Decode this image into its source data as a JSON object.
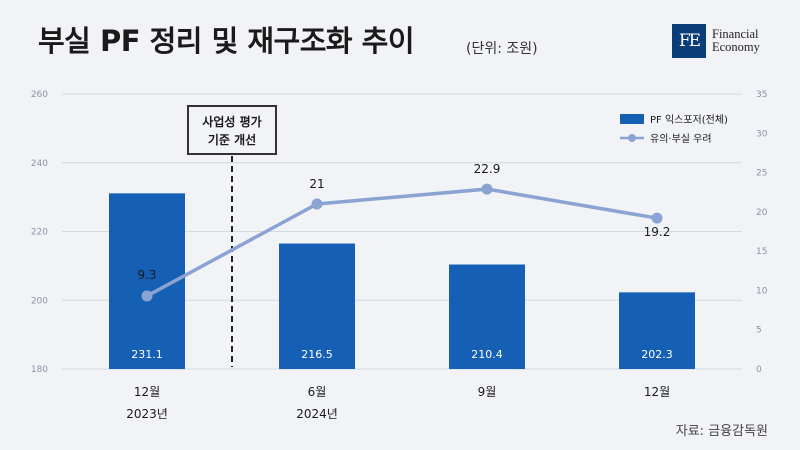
{
  "header": {
    "title": "부실 PF 정리 및 재구조화 추이",
    "unit": "(단위: 조원)",
    "logo_mark": "FE",
    "logo_line1": "Financial",
    "logo_line2": "Economy"
  },
  "source": "자료: 금융감독원",
  "annotation": {
    "line1": "사업성 평가",
    "line2": "기준 개선"
  },
  "colors": {
    "bar": "#1560b4",
    "line": "#8aa3d3",
    "annotation_border": "#333333"
  },
  "chart_data": {
    "type": "bar",
    "categories": [
      "12월",
      "6월",
      "9월",
      "12월"
    ],
    "year_labels": [
      "2023년",
      "2024년",
      "",
      ""
    ],
    "series": [
      {
        "name": "PF 익스포저(전체)",
        "type": "bar",
        "axis": "left",
        "values": [
          231.1,
          216.5,
          210.4,
          202.3
        ]
      },
      {
        "name": "유의·부실 우려",
        "type": "line",
        "axis": "right",
        "values": [
          9.3,
          21,
          22.9,
          19.2
        ]
      }
    ],
    "bar_labels": [
      "231.1",
      "216.5",
      "210.4",
      "202.3"
    ],
    "line_labels": [
      "9.3",
      "21",
      "22.9",
      "19.2"
    ],
    "left_axis": {
      "ylim": [
        180,
        260
      ],
      "ticks": [
        "180",
        "200",
        "220",
        "240",
        "260"
      ]
    },
    "right_axis": {
      "ylim": [
        0,
        35
      ],
      "ticks": [
        "0",
        "5",
        "10",
        "15",
        "20",
        "25",
        "30",
        "35"
      ]
    },
    "grid": true,
    "legend_position": "top-right"
  }
}
